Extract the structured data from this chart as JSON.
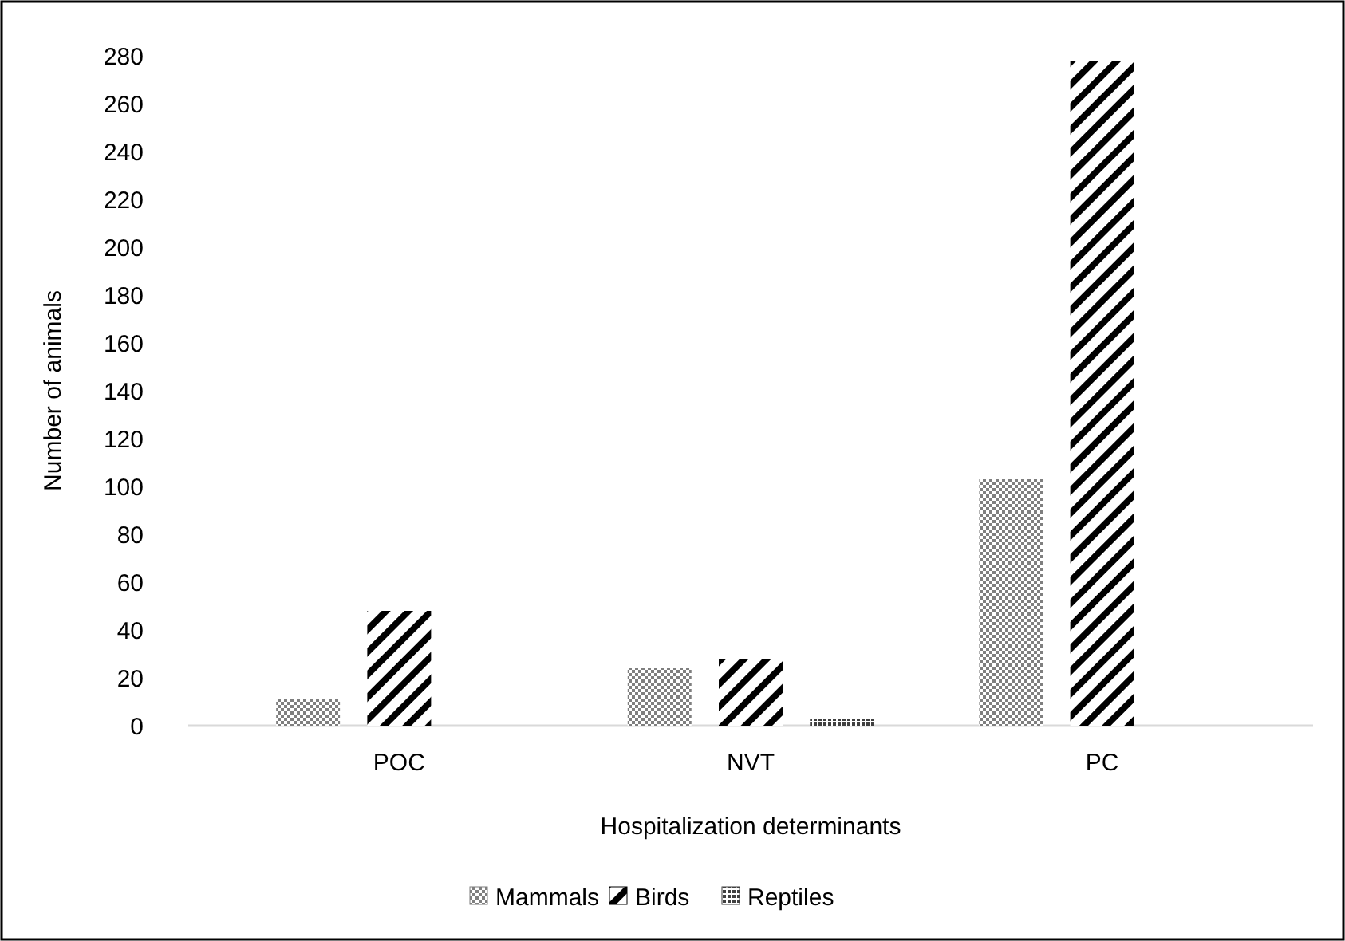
{
  "chart_data": {
    "type": "bar",
    "xlabel": "Hospitalization determinants",
    "ylabel": "Number of animals",
    "categories": [
      "POC",
      "NVT",
      "PC"
    ],
    "series": [
      {
        "name": "Mammals",
        "color": "#7f7f7f",
        "values": [
          11,
          24,
          103
        ]
      },
      {
        "name": "Birds",
        "color": "#000000",
        "values": [
          48,
          28,
          278
        ]
      },
      {
        "name": "Reptiles",
        "color": "#404040",
        "values": [
          0,
          3,
          0
        ]
      }
    ],
    "ylim": [
      0,
      280
    ],
    "yticks": [
      0,
      20,
      40,
      60,
      80,
      100,
      120,
      140,
      160,
      180,
      200,
      220,
      240,
      260,
      280
    ],
    "grid": false,
    "legend": "bottom"
  }
}
